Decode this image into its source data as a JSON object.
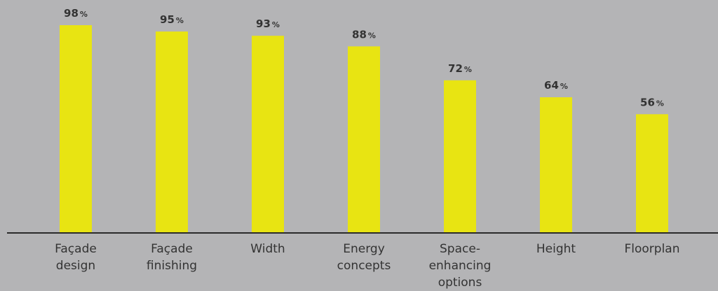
{
  "chart_data": {
    "type": "bar",
    "categories": [
      [
        "Façade",
        "design"
      ],
      [
        "Façade",
        "finishing"
      ],
      [
        "Width"
      ],
      [
        "Energy",
        "concepts"
      ],
      [
        "Space-",
        "enhancing",
        "options"
      ],
      [
        "Height"
      ],
      [
        "Floorplan"
      ]
    ],
    "values": [
      98,
      95,
      93,
      88,
      72,
      64,
      56
    ],
    "value_suffix": "%",
    "ylim": [
      0,
      100
    ],
    "grid": false,
    "legend": "none",
    "colors": {
      "background": "#b4b4b6",
      "bar": "#e8e412",
      "axis": "#2a2a2a",
      "text": "#333333"
    }
  }
}
